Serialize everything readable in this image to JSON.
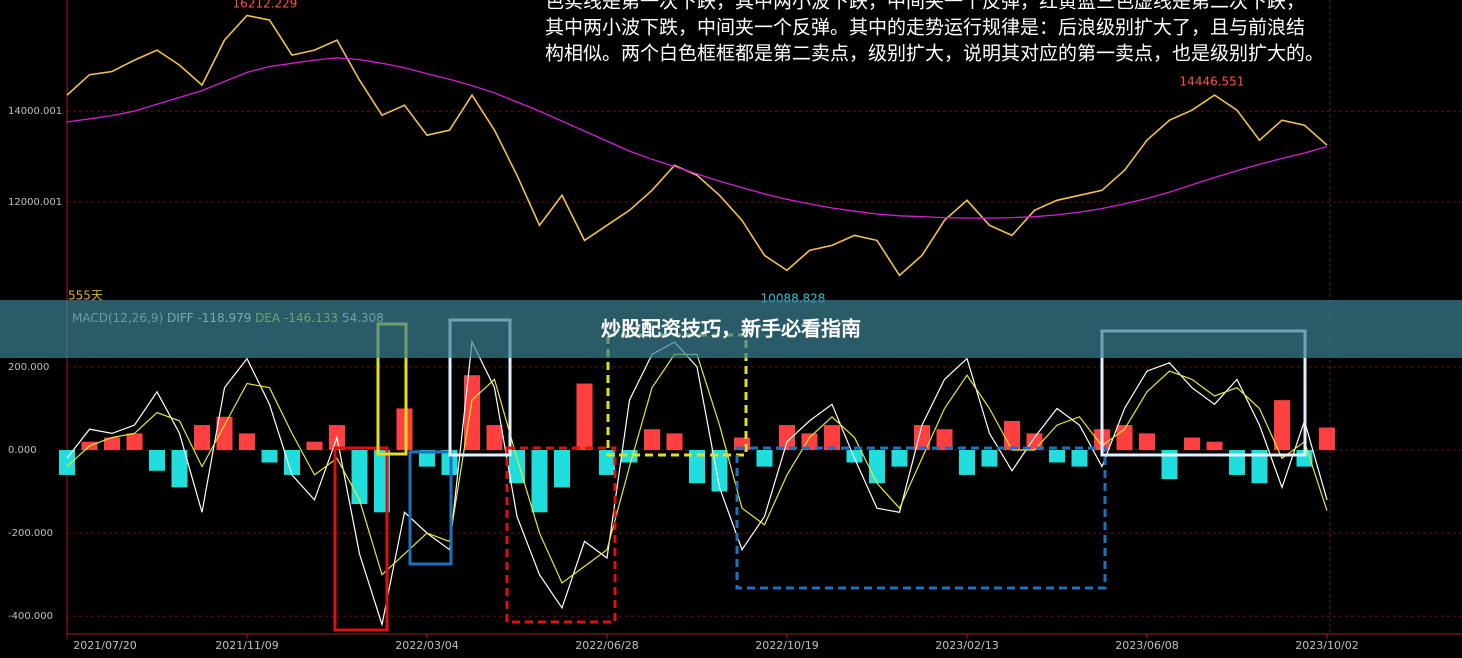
{
  "header": {
    "annotation_lines": [
      "色实线是第一次下跌，其中两小波下跌，中间夹一个反弹，红黄蓝三色虚线是第二次下跌，",
      "其中两小波下跌，中间夹一个反弹。其中的走势运行规律是：后浪级别扩大了，且与前浪结",
      "构相似。两个白色框框都是第二卖点，级别扩大，说明其对应的第一卖点，也是级别扩大的。"
    ]
  },
  "banner": "炒股配资技巧，新手必看指南",
  "chart_data": [
    {
      "type": "line",
      "annotations": [
        "16212.229",
        "14446.551",
        "10088.828"
      ],
      "period_label": "555天",
      "categories": [
        "2021/07/20",
        null,
        null,
        null,
        null,
        null,
        null,
        null,
        "2021/11/09",
        null,
        null,
        null,
        null,
        null,
        null,
        null,
        "2022/03/04",
        null,
        null,
        null,
        null,
        null,
        null,
        null,
        "2022/06/28",
        null,
        null,
        null,
        null,
        null,
        null,
        null,
        "2022/10/19",
        null,
        null,
        null,
        null,
        null,
        null,
        null,
        "2023/02/13",
        null,
        null,
        null,
        null,
        null,
        null,
        null,
        "2023/06/08",
        null,
        null,
        null,
        null,
        null,
        null,
        null,
        "2023/10/02"
      ],
      "series": [
        {
          "color": "#f2c14e",
          "values": [
            14350,
            14800,
            14870,
            15120,
            15340,
            15010,
            14570,
            15560,
            16100,
            16000,
            15230,
            15340,
            15560,
            14680,
            13910,
            14130,
            13470,
            13580,
            14350,
            13580,
            12590,
            11490,
            12150,
            11160,
            11490,
            11820,
            12260,
            12810,
            12590,
            12150,
            11600,
            10830,
            10500,
            10940,
            11050,
            11270,
            11160,
            10390,
            10830,
            11600,
            12040,
            11490,
            11270,
            11820,
            12040,
            12150,
            12260,
            12700,
            13360,
            13800,
            14020,
            14350,
            14020,
            13360,
            13800,
            13690,
            13250
          ]
        },
        {
          "color": "#d020d0",
          "values": [
            13760,
            13830,
            13900,
            14000,
            14150,
            14300,
            14450,
            14650,
            14850,
            14980,
            15050,
            15120,
            15170,
            15130,
            15050,
            14950,
            14820,
            14700,
            14560,
            14400,
            14200,
            14000,
            13780,
            13560,
            13340,
            13120,
            12940,
            12780,
            12620,
            12460,
            12320,
            12180,
            12060,
            11960,
            11870,
            11800,
            11740,
            11700,
            11680,
            11660,
            11650,
            11650,
            11660,
            11680,
            11720,
            11780,
            11860,
            11960,
            12080,
            12220,
            12380,
            12540,
            12690,
            12830,
            12960,
            13080,
            13220
          ]
        }
      ],
      "ylim": [
        9850,
        16440
      ],
      "yticks": [
        14000.001,
        12000.001
      ],
      "grid": true
    },
    {
      "type": "macd",
      "indicator": "MACD(12,26,9)",
      "series": [
        {
          "name": "DIFF",
          "latest": -118.979,
          "color": "#ffffff",
          "values": [
            -20,
            50,
            40,
            60,
            140,
            40,
            -150,
            150,
            220,
            110,
            -60,
            -120,
            30,
            -250,
            -420,
            -150,
            -200,
            -240,
            260,
            150,
            -160,
            -300,
            -380,
            -220,
            -260,
            120,
            230,
            260,
            200,
            -90,
            -240,
            -160,
            20,
            70,
            110,
            -20,
            -140,
            -150,
            60,
            170,
            220,
            40,
            -50,
            30,
            100,
            60,
            -40,
            100,
            190,
            210,
            150,
            110,
            170,
            60,
            -90,
            70,
            -120
          ]
        },
        {
          "name": "DEA",
          "latest": -146.133,
          "color": "#e8e830",
          "values": [
            -40,
            10,
            30,
            40,
            90,
            70,
            -40,
            60,
            160,
            150,
            40,
            -60,
            -20,
            -120,
            -300,
            -250,
            -200,
            -220,
            120,
            170,
            -20,
            -200,
            -320,
            -280,
            -240,
            -40,
            150,
            230,
            230,
            60,
            -140,
            -180,
            -60,
            30,
            80,
            30,
            -80,
            -140,
            -20,
            100,
            180,
            100,
            0,
            0,
            60,
            80,
            10,
            50,
            140,
            190,
            170,
            130,
            150,
            100,
            -20,
            20,
            -146
          ]
        }
      ],
      "macd_latest": 54.308,
      "values": [
        -60,
        20,
        30,
        40,
        -50,
        -90,
        60,
        80,
        40,
        -30,
        -60,
        20,
        60,
        -130,
        -150,
        100,
        -40,
        -60,
        180,
        60,
        -80,
        -150,
        -90,
        160,
        -60,
        -30,
        50,
        40,
        -80,
        -100,
        30,
        -40,
        60,
        40,
        60,
        -30,
        -80,
        -40,
        60,
        50,
        -60,
        -40,
        70,
        40,
        -30,
        -40,
        50,
        60,
        40,
        -70,
        30,
        20,
        -60,
        -80,
        120,
        -40,
        54
      ],
      "up_color": "#ff4040",
      "down_color": "#20dede",
      "ylim": [
        -438,
        349
      ],
      "yticks": [
        {
          "value": 200,
          "label": "200.000"
        },
        {
          "value": 0,
          "label": "0.000"
        },
        {
          "value": -200,
          "label": "-200.000"
        },
        {
          "value": -400,
          "label": "-400.000"
        }
      ],
      "grid": true
    }
  ]
}
